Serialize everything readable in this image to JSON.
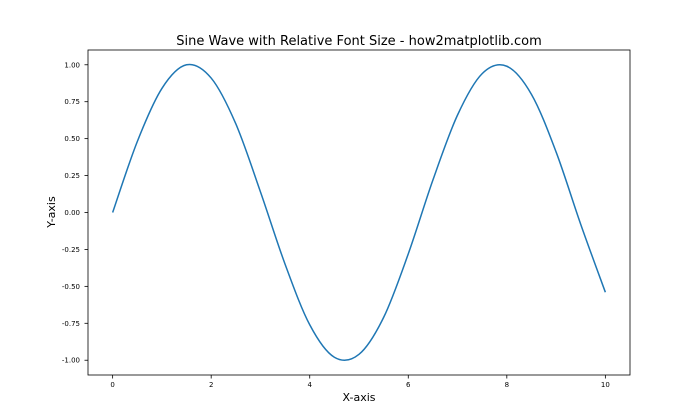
{
  "chart_data": {
    "type": "line",
    "title": "Sine Wave with Relative Font Size - how2matplotlib.com",
    "xlabel": "X-axis",
    "ylabel": "Y-axis",
    "xlim": [
      -0.5,
      10.5
    ],
    "ylim": [
      -1.1,
      1.1
    ],
    "x_ticks": [
      0,
      2,
      4,
      6,
      8,
      10
    ],
    "x_tick_labels": [
      "0",
      "2",
      "4",
      "6",
      "8",
      "10"
    ],
    "y_ticks": [
      1.0,
      0.75,
      0.5,
      0.25,
      0.0,
      -0.25,
      -0.5,
      -0.75,
      -1.0
    ],
    "y_tick_labels": [
      "1.00",
      "0.75",
      "0.50",
      "0.25",
      "0.00",
      "-0.25",
      "-0.50",
      "-0.75",
      "-1.00"
    ],
    "grid": false,
    "legend": false,
    "series": [
      {
        "color": "#1f77b4",
        "x": [
          0,
          0.5,
          1,
          1.5,
          2,
          2.5,
          3,
          3.5,
          4,
          4.5,
          5,
          5.5,
          6,
          6.5,
          7,
          7.5,
          8,
          8.5,
          9,
          9.5,
          10
        ],
        "y": [
          0.0,
          0.48,
          0.84,
          1.0,
          0.91,
          0.6,
          0.14,
          -0.35,
          -0.76,
          -0.98,
          -0.96,
          -0.71,
          -0.28,
          0.22,
          0.66,
          0.94,
          0.99,
          0.8,
          0.41,
          -0.08,
          -0.54
        ]
      }
    ]
  }
}
